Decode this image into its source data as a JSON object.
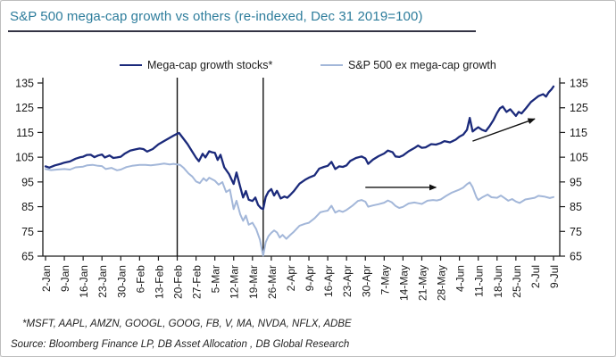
{
  "title": "S&P 500 mega-cap growth vs others (re-indexed, Dec 31 2019=100)",
  "footnotes": {
    "constituents": "*MSFT, AAPL, AMZN, GOOGL, GOOG, FB, V, MA, NVDA, NFLX, ADBE",
    "source": "Source: Bloomberg Finance LP, DB Asset Allocation , DB Global Research"
  },
  "colors": {
    "title": "#2E7D9C",
    "title_rule": "#333344",
    "axis": "#1A1A1A",
    "annotation": "#111111"
  },
  "chart_data": {
    "type": "line",
    "title": "S&P 500 mega-cap growth vs others (re-indexed, Dec 31 2019=100)",
    "xlabel": "",
    "ylabel": "",
    "ylim": [
      65,
      135
    ],
    "y_ticks": [
      65,
      75,
      85,
      95,
      105,
      115,
      125,
      135
    ],
    "dual_y_axis": true,
    "grid": false,
    "legend_position": "top",
    "x_tick_labels": [
      "2-Jan",
      "9-Jan",
      "16-Jan",
      "23-Jan",
      "30-Jan",
      "6-Feb",
      "13-Feb",
      "20-Feb",
      "27-Feb",
      "5-Mar",
      "12-Mar",
      "19-Mar",
      "26-Mar",
      "2-Apr",
      "9-Apr",
      "16-Apr",
      "23-Apr",
      "30-Apr",
      "7-May",
      "14-May",
      "21-May",
      "28-May",
      "4-Jun",
      "11-Jun",
      "18-Jun",
      "25-Jun",
      "2-Jul",
      "9-Jul"
    ],
    "x_unit": "weeks-from-2-Jan",
    "reference_lines": [
      {
        "x": 7.0,
        "note": "at 20-Feb"
      },
      {
        "x": 11.57,
        "note": "at 23-Mar"
      }
    ],
    "arrows": [
      {
        "from": [
          17.0,
          92.8
        ],
        "to": [
          20.75,
          92.8
        ]
      },
      {
        "from": [
          22.7,
          111.5
        ],
        "to": [
          26.0,
          120.5
        ]
      }
    ],
    "series": [
      {
        "name": "Mega-cap growth stocks*",
        "color": "#1B2A7B",
        "points": [
          [
            0,
            101.3
          ],
          [
            0.2,
            100.8
          ],
          [
            0.5,
            101.7
          ],
          [
            0.8,
            102.3
          ],
          [
            1,
            102.8
          ],
          [
            1.3,
            103.3
          ],
          [
            1.6,
            104.4
          ],
          [
            1.85,
            105.0
          ],
          [
            2,
            105.2
          ],
          [
            2.2,
            105.9
          ],
          [
            2.4,
            106.0
          ],
          [
            2.6,
            105.0
          ],
          [
            2.8,
            105.7
          ],
          [
            3,
            106.1
          ],
          [
            3.15,
            104.9
          ],
          [
            3.4,
            105.7
          ],
          [
            3.6,
            104.7
          ],
          [
            3.8,
            104.9
          ],
          [
            4,
            105.2
          ],
          [
            4.2,
            106.4
          ],
          [
            4.5,
            107.7
          ],
          [
            4.8,
            108.2
          ],
          [
            5,
            108.5
          ],
          [
            5.2,
            108.3
          ],
          [
            5.4,
            107.3
          ],
          [
            5.7,
            108.3
          ],
          [
            6,
            110.2
          ],
          [
            6.2,
            111.1
          ],
          [
            6.5,
            112.4
          ],
          [
            6.8,
            113.7
          ],
          [
            7,
            114.5
          ],
          [
            7.1,
            114.8
          ],
          [
            7.3,
            112.8
          ],
          [
            7.55,
            110.3
          ],
          [
            7.8,
            107.2
          ],
          [
            8,
            104.8
          ],
          [
            8.15,
            103.4
          ],
          [
            8.35,
            106.4
          ],
          [
            8.5,
            104.9
          ],
          [
            8.7,
            107.4
          ],
          [
            8.85,
            107.0
          ],
          [
            9,
            106.8
          ],
          [
            9.15,
            103.9
          ],
          [
            9.3,
            106.0
          ],
          [
            9.5,
            100.9
          ],
          [
            9.75,
            98.2
          ],
          [
            10,
            94.2
          ],
          [
            10.15,
            98.8
          ],
          [
            10.35,
            93.0
          ],
          [
            10.5,
            88.7
          ],
          [
            10.65,
            91.3
          ],
          [
            10.8,
            87.8
          ],
          [
            11,
            87.3
          ],
          [
            11.15,
            88.7
          ],
          [
            11.3,
            85.7
          ],
          [
            11.45,
            84.4
          ],
          [
            11.57,
            84.0
          ],
          [
            11.7,
            88.9
          ],
          [
            11.85,
            91.1
          ],
          [
            12,
            92.1
          ],
          [
            12.15,
            89.5
          ],
          [
            12.3,
            91.4
          ],
          [
            12.5,
            88.3
          ],
          [
            12.7,
            89.1
          ],
          [
            12.85,
            88.6
          ],
          [
            13,
            89.7
          ],
          [
            13.2,
            91.3
          ],
          [
            13.5,
            94.3
          ],
          [
            13.8,
            95.9
          ],
          [
            14,
            96.7
          ],
          [
            14.3,
            97.7
          ],
          [
            14.55,
            100.4
          ],
          [
            14.8,
            101.1
          ],
          [
            15,
            101.5
          ],
          [
            15.2,
            103.1
          ],
          [
            15.4,
            100.2
          ],
          [
            15.6,
            101.3
          ],
          [
            15.8,
            101.1
          ],
          [
            16,
            101.7
          ],
          [
            16.2,
            103.5
          ],
          [
            16.5,
            104.7
          ],
          [
            16.8,
            105.3
          ],
          [
            17,
            104.5
          ],
          [
            17.15,
            102.3
          ],
          [
            17.4,
            104.0
          ],
          [
            17.7,
            105.4
          ],
          [
            18,
            106.5
          ],
          [
            18.2,
            107.7
          ],
          [
            18.45,
            107.0
          ],
          [
            18.6,
            105.3
          ],
          [
            18.8,
            105.1
          ],
          [
            19,
            105.7
          ],
          [
            19.3,
            107.4
          ],
          [
            19.6,
            108.7
          ],
          [
            19.8,
            109.7
          ],
          [
            20,
            108.8
          ],
          [
            20.2,
            109.0
          ],
          [
            20.5,
            110.3
          ],
          [
            20.75,
            110.1
          ],
          [
            21,
            110.7
          ],
          [
            21.2,
            111.5
          ],
          [
            21.5,
            111.0
          ],
          [
            21.8,
            112.1
          ],
          [
            22,
            113.3
          ],
          [
            22.2,
            114.1
          ],
          [
            22.4,
            116.1
          ],
          [
            22.55,
            120.9
          ],
          [
            22.7,
            115.4
          ],
          [
            22.85,
            116.3
          ],
          [
            23,
            117.1
          ],
          [
            23.2,
            116.1
          ],
          [
            23.4,
            115.5
          ],
          [
            23.6,
            117.5
          ],
          [
            23.8,
            119.9
          ],
          [
            24,
            122.9
          ],
          [
            24.15,
            124.7
          ],
          [
            24.3,
            125.5
          ],
          [
            24.5,
            123.3
          ],
          [
            24.7,
            124.4
          ],
          [
            25,
            121.7
          ],
          [
            25.15,
            123.3
          ],
          [
            25.3,
            122.7
          ],
          [
            25.55,
            124.9
          ],
          [
            25.8,
            127.3
          ],
          [
            26,
            128.5
          ],
          [
            26.2,
            129.7
          ],
          [
            26.45,
            130.5
          ],
          [
            26.6,
            129.5
          ],
          [
            26.75,
            131.3
          ],
          [
            26.9,
            132.5
          ],
          [
            27,
            133.6
          ]
        ]
      },
      {
        "name": "S&P 500 ex mega-cap growth",
        "color": "#A3B7D9",
        "points": [
          [
            0,
            100.2
          ],
          [
            0.3,
            99.8
          ],
          [
            0.6,
            100.0
          ],
          [
            1,
            100.2
          ],
          [
            1.3,
            100.0
          ],
          [
            1.6,
            100.9
          ],
          [
            2,
            101.2
          ],
          [
            2.2,
            101.7
          ],
          [
            2.5,
            101.9
          ],
          [
            2.8,
            101.5
          ],
          [
            3,
            101.4
          ],
          [
            3.2,
            100.2
          ],
          [
            3.5,
            100.7
          ],
          [
            3.8,
            99.7
          ],
          [
            4,
            100.0
          ],
          [
            4.3,
            101.0
          ],
          [
            4.6,
            101.5
          ],
          [
            5,
            101.9
          ],
          [
            5.3,
            101.9
          ],
          [
            5.6,
            101.7
          ],
          [
            6,
            102.1
          ],
          [
            6.3,
            102.4
          ],
          [
            6.6,
            102.1
          ],
          [
            6.8,
            102.3
          ],
          [
            7,
            102.1
          ],
          [
            7.15,
            101.9
          ],
          [
            7.35,
            100.6
          ],
          [
            7.6,
            98.4
          ],
          [
            7.8,
            97.2
          ],
          [
            8,
            95.2
          ],
          [
            8.2,
            94.5
          ],
          [
            8.4,
            96.5
          ],
          [
            8.55,
            95.4
          ],
          [
            8.7,
            96.7
          ],
          [
            9,
            95.5
          ],
          [
            9.2,
            93.9
          ],
          [
            9.4,
            94.9
          ],
          [
            9.6,
            90.9
          ],
          [
            9.8,
            91.9
          ],
          [
            10,
            84.0
          ],
          [
            10.15,
            87.4
          ],
          [
            10.35,
            81.9
          ],
          [
            10.5,
            79.3
          ],
          [
            10.65,
            81.4
          ],
          [
            10.8,
            77.7
          ],
          [
            11,
            78.5
          ],
          [
            11.2,
            75.9
          ],
          [
            11.4,
            71.6
          ],
          [
            11.5,
            67.6
          ],
          [
            11.57,
            65.2
          ],
          [
            11.7,
            70.6
          ],
          [
            11.85,
            73.1
          ],
          [
            12,
            74.4
          ],
          [
            12.15,
            75.4
          ],
          [
            12.3,
            74.6
          ],
          [
            12.45,
            72.5
          ],
          [
            12.6,
            73.6
          ],
          [
            12.8,
            72.0
          ],
          [
            13,
            73.5
          ],
          [
            13.2,
            74.9
          ],
          [
            13.5,
            77.3
          ],
          [
            13.8,
            78.1
          ],
          [
            14,
            78.5
          ],
          [
            14.3,
            80.3
          ],
          [
            14.6,
            82.7
          ],
          [
            14.8,
            83.1
          ],
          [
            15,
            83.4
          ],
          [
            15.2,
            85.4
          ],
          [
            15.4,
            82.6
          ],
          [
            15.6,
            83.4
          ],
          [
            15.8,
            82.9
          ],
          [
            16,
            83.7
          ],
          [
            16.3,
            85.3
          ],
          [
            16.6,
            87.3
          ],
          [
            16.8,
            87.7
          ],
          [
            17,
            87.0
          ],
          [
            17.15,
            85.0
          ],
          [
            17.4,
            85.5
          ],
          [
            17.7,
            86.0
          ],
          [
            18,
            86.6
          ],
          [
            18.2,
            87.5
          ],
          [
            18.4,
            86.8
          ],
          [
            18.6,
            85.3
          ],
          [
            18.8,
            84.5
          ],
          [
            19,
            84.9
          ],
          [
            19.3,
            86.3
          ],
          [
            19.6,
            86.7
          ],
          [
            19.8,
            86.4
          ],
          [
            20,
            86.1
          ],
          [
            20.3,
            87.4
          ],
          [
            20.6,
            87.7
          ],
          [
            20.8,
            87.5
          ],
          [
            21,
            87.9
          ],
          [
            21.3,
            89.4
          ],
          [
            21.6,
            90.7
          ],
          [
            22,
            91.9
          ],
          [
            22.2,
            92.7
          ],
          [
            22.4,
            94.1
          ],
          [
            22.55,
            94.8
          ],
          [
            22.7,
            92.9
          ],
          [
            22.9,
            88.9
          ],
          [
            23,
            87.7
          ],
          [
            23.2,
            88.7
          ],
          [
            23.5,
            89.9
          ],
          [
            23.7,
            88.8
          ],
          [
            24,
            88.6
          ],
          [
            24.2,
            89.5
          ],
          [
            24.4,
            88.5
          ],
          [
            24.6,
            87.4
          ],
          [
            24.8,
            88.1
          ],
          [
            25,
            87.1
          ],
          [
            25.2,
            86.5
          ],
          [
            25.5,
            87.9
          ],
          [
            25.8,
            88.3
          ],
          [
            26,
            88.6
          ],
          [
            26.2,
            89.4
          ],
          [
            26.5,
            89.1
          ],
          [
            26.8,
            88.5
          ],
          [
            27,
            88.9
          ]
        ]
      }
    ]
  }
}
